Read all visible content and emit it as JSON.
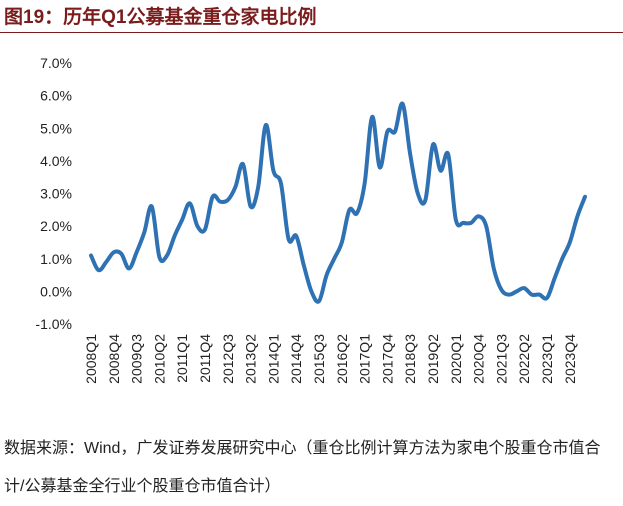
{
  "chart_data": {
    "type": "line",
    "title": "图19：历年Q1公募基金重仓家电比例",
    "source": "数据来源：Wind，广发证券发展研究中心（重仓比例计算方法为家电个股重仓市值合计/公募基金全行业个股重仓市值合计）",
    "categories": [
      "2008Q1",
      null,
      null,
      "2008Q4",
      null,
      null,
      "2009Q3",
      null,
      null,
      "2010Q2",
      null,
      null,
      "2011Q1",
      null,
      null,
      "2011Q4",
      null,
      null,
      "2012Q3",
      null,
      null,
      "2013Q2",
      null,
      null,
      "2014Q1",
      null,
      null,
      "2014Q4",
      null,
      null,
      "2015Q3",
      null,
      null,
      "2016Q2",
      null,
      null,
      "2017Q1",
      null,
      null,
      "2017Q4",
      null,
      null,
      "2018Q3",
      null,
      null,
      "2019Q2",
      null,
      null,
      "2020Q1",
      null,
      null,
      "2020Q4",
      null,
      null,
      "2021Q3",
      null,
      null,
      "2022Q2",
      null,
      null,
      "2023Q1",
      null,
      null,
      "2023Q4",
      null,
      null
    ],
    "series": [
      {
        "color": "#2f72b4",
        "values": [
          1.1,
          0.65,
          0.9,
          1.2,
          1.15,
          0.7,
          1.2,
          1.8,
          2.6,
          1.05,
          1.1,
          1.7,
          2.2,
          2.7,
          2.0,
          1.9,
          2.9,
          2.75,
          2.8,
          3.2,
          3.9,
          2.6,
          3.2,
          5.1,
          3.7,
          3.3,
          1.6,
          1.7,
          0.8,
          0.0,
          -0.3,
          0.5,
          1.0,
          1.5,
          2.5,
          2.4,
          3.3,
          5.35,
          3.8,
          4.9,
          4.9,
          5.75,
          4.2,
          3.0,
          2.8,
          4.5,
          3.7,
          4.2,
          2.2,
          2.1,
          2.1,
          2.3,
          2.0,
          0.7,
          0.05,
          -0.1,
          0.0,
          0.1,
          -0.1,
          -0.1,
          -0.2,
          0.4,
          1.0,
          1.5,
          2.3,
          2.9
        ]
      }
    ],
    "ylim": [
      -1.0,
      7.0
    ],
    "yticks": [
      {
        "value": -1.0,
        "label": "-1.0%"
      },
      {
        "value": 0.0,
        "label": "0.0%"
      },
      {
        "value": 1.0,
        "label": "1.0%"
      },
      {
        "value": 2.0,
        "label": "2.0%"
      },
      {
        "value": 3.0,
        "label": "3.0%"
      },
      {
        "value": 4.0,
        "label": "4.0%"
      },
      {
        "value": 5.0,
        "label": "5.0%"
      },
      {
        "value": 6.0,
        "label": "6.0%"
      },
      {
        "value": 7.0,
        "label": "7.0%"
      }
    ],
    "grid": false
  }
}
